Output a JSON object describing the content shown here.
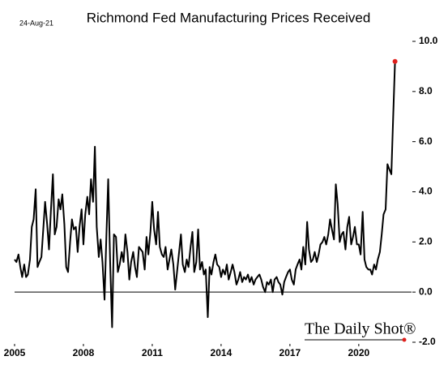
{
  "chart_data": {
    "type": "line",
    "title": "Richmond Fed Manufacturing Prices Received",
    "date": "24-Aug-21",
    "source": "The Daily Shot®",
    "x": [
      2005.0,
      2005.08,
      2005.17,
      2005.25,
      2005.33,
      2005.42,
      2005.5,
      2005.58,
      2005.67,
      2005.75,
      2005.83,
      2005.92,
      2006.0,
      2006.08,
      2006.17,
      2006.25,
      2006.33,
      2006.42,
      2006.5,
      2006.58,
      2006.67,
      2006.75,
      2006.83,
      2006.92,
      2007.0,
      2007.08,
      2007.17,
      2007.25,
      2007.33,
      2007.42,
      2007.5,
      2007.58,
      2007.67,
      2007.75,
      2007.83,
      2007.92,
      2008.0,
      2008.08,
      2008.17,
      2008.25,
      2008.33,
      2008.42,
      2008.5,
      2008.58,
      2008.67,
      2008.75,
      2008.83,
      2008.92,
      2009.0,
      2009.08,
      2009.17,
      2009.25,
      2009.33,
      2009.42,
      2009.5,
      2009.58,
      2009.67,
      2009.75,
      2009.83,
      2009.92,
      2010.0,
      2010.08,
      2010.17,
      2010.25,
      2010.33,
      2010.42,
      2010.5,
      2010.58,
      2010.67,
      2010.75,
      2010.83,
      2010.92,
      2011.0,
      2011.08,
      2011.17,
      2011.25,
      2011.33,
      2011.42,
      2011.5,
      2011.58,
      2011.67,
      2011.75,
      2011.83,
      2011.92,
      2012.0,
      2012.08,
      2012.17,
      2012.25,
      2012.33,
      2012.42,
      2012.5,
      2012.58,
      2012.67,
      2012.75,
      2012.83,
      2012.92,
      2013.0,
      2013.08,
      2013.17,
      2013.25,
      2013.33,
      2013.42,
      2013.5,
      2013.58,
      2013.67,
      2013.75,
      2013.83,
      2013.92,
      2014.0,
      2014.08,
      2014.17,
      2014.25,
      2014.33,
      2014.42,
      2014.5,
      2014.58,
      2014.67,
      2014.75,
      2014.83,
      2014.92,
      2015.0,
      2015.08,
      2015.17,
      2015.25,
      2015.33,
      2015.42,
      2015.5,
      2015.58,
      2015.67,
      2015.75,
      2015.83,
      2015.92,
      2016.0,
      2016.08,
      2016.17,
      2016.25,
      2016.33,
      2016.42,
      2016.5,
      2016.58,
      2016.67,
      2016.75,
      2016.83,
      2016.92,
      2017.0,
      2017.08,
      2017.17,
      2017.25,
      2017.33,
      2017.42,
      2017.5,
      2017.58,
      2017.67,
      2017.75,
      2017.83,
      2017.92,
      2018.0,
      2018.08,
      2018.17,
      2018.25,
      2018.33,
      2018.42,
      2018.5,
      2018.58,
      2018.67,
      2018.75,
      2018.83,
      2018.92,
      2019.0,
      2019.08,
      2019.17,
      2019.25,
      2019.33,
      2019.42,
      2019.5,
      2019.58,
      2019.67,
      2019.75,
      2019.83,
      2019.92,
      2020.0,
      2020.08,
      2020.17,
      2020.25,
      2020.33,
      2020.42,
      2020.5,
      2020.58,
      2020.67,
      2020.75,
      2020.83,
      2020.92,
      2021.0,
      2021.08,
      2021.17,
      2021.25,
      2021.33,
      2021.42,
      2021.5,
      2021.58
    ],
    "series": [
      {
        "color": "#000000",
        "end_marker_color": "#e0201c",
        "values": [
          1.3,
          1.2,
          1.5,
          1.0,
          0.6,
          1.1,
          0.6,
          0.7,
          1.3,
          2.6,
          2.9,
          4.1,
          1.0,
          1.2,
          1.4,
          2.5,
          3.6,
          2.7,
          1.7,
          3.2,
          4.7,
          2.3,
          2.6,
          3.7,
          3.3,
          3.9,
          2.7,
          1.0,
          0.8,
          2.0,
          2.9,
          2.5,
          2.6,
          1.6,
          2.6,
          3.3,
          1.9,
          3.1,
          3.8,
          3.1,
          4.5,
          3.6,
          5.8,
          2.6,
          1.4,
          2.1,
          1.2,
          -0.3,
          2.2,
          4.5,
          1.0,
          -1.4,
          2.3,
          2.2,
          0.8,
          1.1,
          1.6,
          1.2,
          2.3,
          1.6,
          0.5,
          1.2,
          1.6,
          1.0,
          0.6,
          1.8,
          1.7,
          1.6,
          0.9,
          2.2,
          1.5,
          2.4,
          3.6,
          2.5,
          1.9,
          3.2,
          1.8,
          1.5,
          1.4,
          1.8,
          0.9,
          1.3,
          1.7,
          1.1,
          0.1,
          0.8,
          1.6,
          2.3,
          1.1,
          0.8,
          1.3,
          1.0,
          1.8,
          2.4,
          0.8,
          1.2,
          2.5,
          0.9,
          1.2,
          0.7,
          0.9,
          -1.0,
          1.0,
          0.7,
          1.2,
          1.5,
          1.1,
          1.0,
          0.6,
          0.9,
          0.7,
          1.1,
          0.5,
          0.8,
          1.1,
          0.8,
          0.3,
          0.5,
          0.8,
          0.4,
          0.6,
          0.5,
          0.7,
          0.4,
          0.6,
          0.3,
          0.5,
          0.6,
          0.7,
          0.5,
          0.2,
          0.0,
          0.4,
          0.3,
          0.5,
          0.0,
          0.5,
          0.6,
          0.4,
          0.3,
          -0.1,
          0.4,
          0.6,
          0.8,
          0.9,
          0.5,
          0.3,
          0.9,
          1.1,
          1.3,
          0.9,
          1.8,
          1.1,
          2.8,
          1.7,
          1.2,
          1.3,
          1.6,
          1.2,
          1.5,
          1.9,
          2.0,
          2.2,
          1.9,
          2.3,
          2.9,
          2.5,
          2.1,
          4.3,
          3.5,
          2.0,
          2.3,
          2.4,
          1.7,
          2.6,
          3.0,
          1.9,
          2.2,
          2.6,
          1.9,
          1.9,
          1.5,
          3.2,
          1.3,
          1.0,
          0.9,
          0.9,
          0.7,
          1.1,
          0.9,
          1.3,
          1.6,
          2.3,
          3.1,
          3.3,
          5.1,
          4.9,
          4.7,
          7.0,
          9.2
        ]
      }
    ],
    "xlim": [
      2005,
      2022.3
    ],
    "xticks": [
      2005,
      2008,
      2011,
      2014,
      2017,
      2020
    ],
    "ylim": [
      -2,
      10
    ],
    "yticks": [
      {
        "value": -2,
        "label": "-2.0"
      },
      {
        "value": 0,
        "label": "0.0"
      },
      {
        "value": 2,
        "label": "2.0"
      },
      {
        "value": 4,
        "label": "4.0"
      },
      {
        "value": 6,
        "label": "6.0"
      },
      {
        "value": 8,
        "label": "8.0"
      },
      {
        "value": 10,
        "label": "10.0"
      }
    ],
    "zero_line": true
  }
}
